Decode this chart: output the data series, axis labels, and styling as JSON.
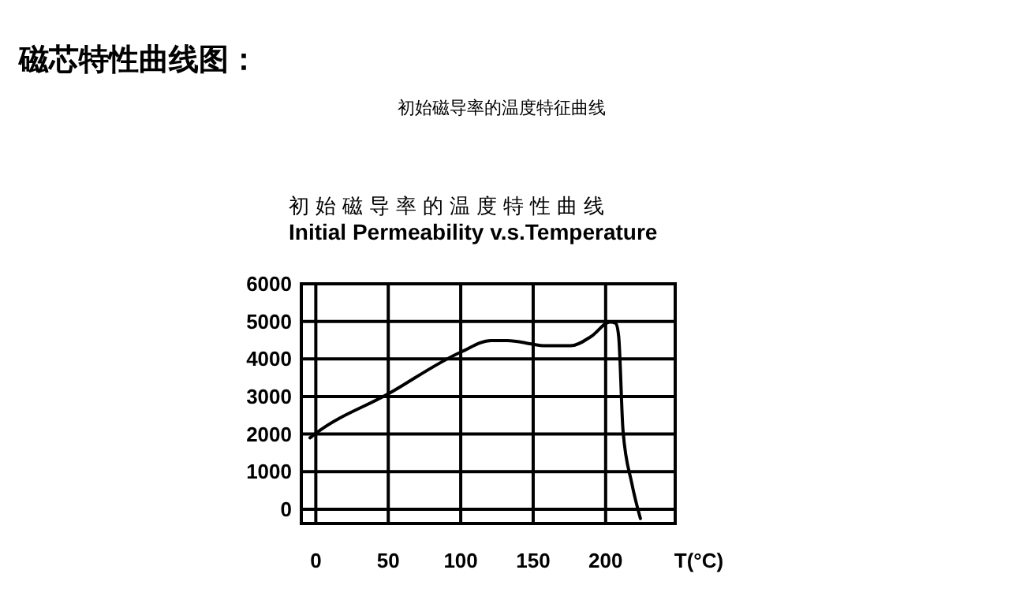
{
  "chart_data": {
    "type": "line",
    "title": "磁芯特性曲线图：",
    "subtitle": "初始磁导率的温度特征曲线",
    "annotations": [
      "初始磁导率的温度特性曲线",
      "Initial Permeability v.s.Temperature"
    ],
    "xlabel": "T(°C)",
    "series": [
      {
        "color": "#000000",
        "x": [
          -4,
          0,
          50,
          100,
          121,
          132,
          150,
          157,
          176,
          190,
          203,
          207,
          209,
          212,
          218,
          224
        ],
        "values": [
          1900,
          2020,
          3070,
          4180,
          4490,
          4490,
          4390,
          4350,
          4350,
          4600,
          4980,
          4950,
          4600,
          2090,
          700,
          -250
        ]
      }
    ],
    "xlim": [
      -10,
      248
    ],
    "ylim": [
      -380,
      6000
    ],
    "xticks": [
      0,
      50,
      100,
      150,
      200
    ],
    "yticks": [
      0,
      1000,
      2000,
      3000,
      4000,
      5000,
      6000
    ],
    "grid": true,
    "marker": "none",
    "line_style": "solid"
  }
}
